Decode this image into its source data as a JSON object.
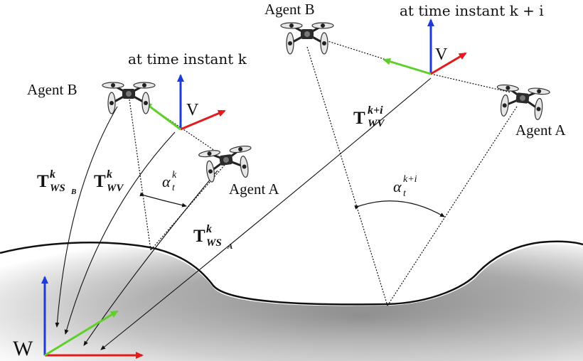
{
  "labels": {
    "time_k": "at time instant k",
    "time_ki": "at time instant k + i",
    "agent_b": "Agent B",
    "agent_a": "Agent A",
    "v": "V",
    "w": "W"
  },
  "transforms": {
    "symbol": "T",
    "ws_b_sup": "k",
    "ws_b_sub": "WS",
    "ws_b_subsub": "B",
    "wv_k_sup": "k",
    "wv_k_sub": "WV",
    "ws_a_sup": "k",
    "ws_a_sub": "WS",
    "ws_a_subsub": "A",
    "wv_ki_sup": "k+i",
    "wv_ki_sub": "WV"
  },
  "angles": {
    "symbol": "α",
    "k_sup": "k",
    "k_sub": "t",
    "ki_sup": "k+i",
    "ki_sub": "t"
  },
  "colors": {
    "axis_x": "#e41a1c",
    "axis_y": "#5fd02b",
    "axis_z": "#1f3bd6",
    "terrain_dark": "#6e6e6e",
    "terrain_light": "#ffffff",
    "line": "#111111"
  }
}
